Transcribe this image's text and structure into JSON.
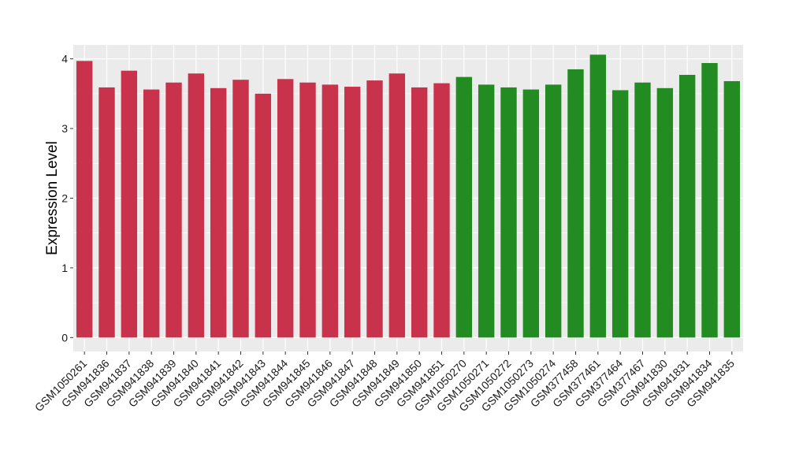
{
  "chart_data": {
    "type": "bar",
    "title": "",
    "xlabel": "",
    "ylabel": "Expression Level",
    "ylim": [
      -0.2,
      4.2
    ],
    "yticks": [
      0,
      1,
      2,
      3,
      4
    ],
    "grid": true,
    "legend": "none",
    "colors": {
      "panel_background": "#ebebeb",
      "grid": "#ffffff",
      "group_1": "#c8334b",
      "group_2": "#228b22",
      "text": "#000000",
      "tick_text": "#1a1a1a"
    },
    "categories": [
      "GSM1050261",
      "GSM941836",
      "GSM941837",
      "GSM941838",
      "GSM941839",
      "GSM941840",
      "GSM941841",
      "GSM941842",
      "GSM941843",
      "GSM941844",
      "GSM941845",
      "GSM941846",
      "GSM941847",
      "GSM941848",
      "GSM941849",
      "GSM941850",
      "GSM941851",
      "GSM1050270",
      "GSM1050271",
      "GSM1050272",
      "GSM1050273",
      "GSM1050274",
      "GSM377458",
      "GSM377461",
      "GSM377464",
      "GSM377467",
      "GSM941830",
      "GSM941831",
      "GSM941834",
      "GSM941835"
    ],
    "values": [
      3.97,
      3.59,
      3.83,
      3.56,
      3.66,
      3.79,
      3.58,
      3.7,
      3.5,
      3.71,
      3.66,
      3.63,
      3.6,
      3.69,
      3.79,
      3.59,
      3.65,
      3.74,
      3.63,
      3.59,
      3.56,
      3.63,
      3.85,
      4.06,
      3.55,
      3.66,
      3.58,
      3.77,
      3.94,
      3.68
    ],
    "groups": [
      1,
      1,
      1,
      1,
      1,
      1,
      1,
      1,
      1,
      1,
      1,
      1,
      1,
      1,
      1,
      1,
      1,
      2,
      2,
      2,
      2,
      2,
      2,
      2,
      2,
      2,
      2,
      2,
      2,
      2
    ]
  }
}
